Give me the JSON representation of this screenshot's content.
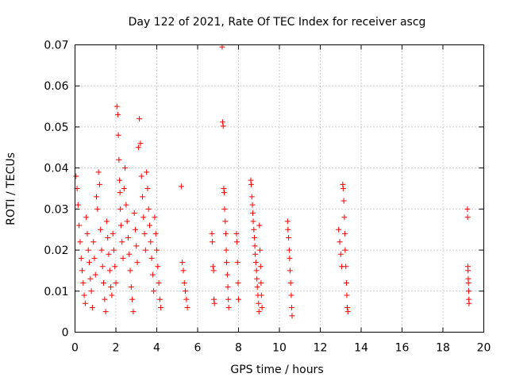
{
  "chart_data": {
    "type": "scatter",
    "title": "Day 122 of 2021, Rate Of TEC Index for receiver ascg",
    "xlabel": "GPS time / hours",
    "ylabel": "ROTI / TECUs",
    "xlim": [
      0,
      20
    ],
    "ylim": [
      0,
      0.07
    ],
    "xticks": [
      0,
      2,
      4,
      6,
      8,
      10,
      12,
      14,
      16,
      18,
      20
    ],
    "yticks": [
      0,
      0.01,
      0.02,
      0.03,
      0.04,
      0.05,
      0.06,
      0.07
    ],
    "xtick_labels": [
      "0",
      "2",
      "4",
      "6",
      "8",
      "10",
      "12",
      "14",
      "16",
      "18",
      "20"
    ],
    "ytick_labels": [
      "0",
      "0.01",
      "0.02",
      "0.03",
      "0.04",
      "0.05",
      "0.06",
      "0.07"
    ],
    "grid": true,
    "marker": "+",
    "color": "#ff0000",
    "series": [
      {
        "name": "ROTI",
        "points": [
          [
            0.05,
            0.038
          ],
          [
            0.1,
            0.035
          ],
          [
            0.15,
            0.031
          ],
          [
            0.2,
            0.026
          ],
          [
            0.25,
            0.022
          ],
          [
            0.3,
            0.018
          ],
          [
            0.35,
            0.015
          ],
          [
            0.4,
            0.012
          ],
          [
            0.45,
            0.009
          ],
          [
            0.5,
            0.007
          ],
          [
            0.55,
            0.028
          ],
          [
            0.6,
            0.024
          ],
          [
            0.65,
            0.02
          ],
          [
            0.7,
            0.017
          ],
          [
            0.75,
            0.013
          ],
          [
            0.8,
            0.01
          ],
          [
            0.85,
            0.006
          ],
          [
            0.9,
            0.022
          ],
          [
            0.95,
            0.018
          ],
          [
            1.0,
            0.014
          ],
          [
            1.05,
            0.033
          ],
          [
            1.1,
            0.03
          ],
          [
            1.15,
            0.039
          ],
          [
            1.2,
            0.036
          ],
          [
            1.25,
            0.025
          ],
          [
            1.3,
            0.02
          ],
          [
            1.35,
            0.016
          ],
          [
            1.4,
            0.012
          ],
          [
            1.45,
            0.008
          ],
          [
            1.5,
            0.005
          ],
          [
            1.55,
            0.027
          ],
          [
            1.6,
            0.023
          ],
          [
            1.65,
            0.019
          ],
          [
            1.7,
            0.015
          ],
          [
            1.75,
            0.011
          ],
          [
            1.8,
            0.009
          ],
          [
            1.85,
            0.024
          ],
          [
            1.9,
            0.02
          ],
          [
            1.95,
            0.016
          ],
          [
            2.0,
            0.012
          ],
          [
            2.05,
            0.055
          ],
          [
            2.1,
            0.053
          ],
          [
            2.12,
            0.048
          ],
          [
            2.15,
            0.042
          ],
          [
            2.18,
            0.037
          ],
          [
            2.2,
            0.034
          ],
          [
            2.22,
            0.03
          ],
          [
            2.25,
            0.026
          ],
          [
            2.3,
            0.022
          ],
          [
            2.35,
            0.018
          ],
          [
            2.4,
            0.035
          ],
          [
            2.45,
            0.04
          ],
          [
            2.5,
            0.031
          ],
          [
            2.55,
            0.027
          ],
          [
            2.6,
            0.023
          ],
          [
            2.65,
            0.019
          ],
          [
            2.7,
            0.015
          ],
          [
            2.75,
            0.011
          ],
          [
            2.8,
            0.008
          ],
          [
            2.85,
            0.005
          ],
          [
            2.9,
            0.029
          ],
          [
            2.95,
            0.025
          ],
          [
            3.0,
            0.021
          ],
          [
            3.05,
            0.017
          ],
          [
            3.1,
            0.045
          ],
          [
            3.15,
            0.052
          ],
          [
            3.2,
            0.046
          ],
          [
            3.25,
            0.038
          ],
          [
            3.3,
            0.033
          ],
          [
            3.35,
            0.028
          ],
          [
            3.4,
            0.024
          ],
          [
            3.45,
            0.02
          ],
          [
            3.5,
            0.039
          ],
          [
            3.55,
            0.035
          ],
          [
            3.6,
            0.03
          ],
          [
            3.65,
            0.026
          ],
          [
            3.7,
            0.022
          ],
          [
            3.75,
            0.018
          ],
          [
            3.8,
            0.014
          ],
          [
            3.85,
            0.01
          ],
          [
            3.9,
            0.028
          ],
          [
            3.95,
            0.024
          ],
          [
            4.0,
            0.02
          ],
          [
            4.05,
            0.016
          ],
          [
            4.1,
            0.012
          ],
          [
            4.15,
            0.008
          ],
          [
            4.2,
            0.006
          ],
          [
            5.2,
            0.0355
          ],
          [
            5.25,
            0.017
          ],
          [
            5.3,
            0.015
          ],
          [
            5.35,
            0.012
          ],
          [
            5.4,
            0.01
          ],
          [
            5.45,
            0.008
          ],
          [
            5.5,
            0.006
          ],
          [
            6.7,
            0.024
          ],
          [
            6.72,
            0.022
          ],
          [
            6.75,
            0.016
          ],
          [
            6.78,
            0.015
          ],
          [
            6.8,
            0.008
          ],
          [
            6.82,
            0.007
          ],
          [
            7.2,
            0.0695
          ],
          [
            7.22,
            0.0512
          ],
          [
            7.25,
            0.0502
          ],
          [
            7.28,
            0.035
          ],
          [
            7.3,
            0.034
          ],
          [
            7.32,
            0.03
          ],
          [
            7.35,
            0.027
          ],
          [
            7.38,
            0.024
          ],
          [
            7.4,
            0.02
          ],
          [
            7.42,
            0.017
          ],
          [
            7.45,
            0.014
          ],
          [
            7.48,
            0.011
          ],
          [
            7.5,
            0.008
          ],
          [
            7.52,
            0.006
          ],
          [
            7.9,
            0.024
          ],
          [
            7.92,
            0.022
          ],
          [
            7.95,
            0.017
          ],
          [
            7.98,
            0.012
          ],
          [
            8.0,
            0.008
          ],
          [
            8.6,
            0.037
          ],
          [
            8.62,
            0.036
          ],
          [
            8.65,
            0.033
          ],
          [
            8.68,
            0.031
          ],
          [
            8.7,
            0.029
          ],
          [
            8.72,
            0.027
          ],
          [
            8.75,
            0.025
          ],
          [
            8.78,
            0.023
          ],
          [
            8.8,
            0.021
          ],
          [
            8.82,
            0.019
          ],
          [
            8.85,
            0.017
          ],
          [
            8.88,
            0.015
          ],
          [
            8.9,
            0.013
          ],
          [
            8.92,
            0.011
          ],
          [
            8.95,
            0.009
          ],
          [
            8.98,
            0.007
          ],
          [
            9.0,
            0.005
          ],
          [
            9.02,
            0.026
          ],
          [
            9.05,
            0.02
          ],
          [
            9.08,
            0.016
          ],
          [
            9.1,
            0.012
          ],
          [
            9.12,
            0.009
          ],
          [
            9.15,
            0.006
          ],
          [
            10.4,
            0.027
          ],
          [
            10.42,
            0.025
          ],
          [
            10.45,
            0.023
          ],
          [
            10.48,
            0.02
          ],
          [
            10.5,
            0.018
          ],
          [
            10.52,
            0.015
          ],
          [
            10.55,
            0.012
          ],
          [
            10.58,
            0.009
          ],
          [
            10.6,
            0.006
          ],
          [
            10.62,
            0.004
          ],
          [
            12.9,
            0.025
          ],
          [
            12.95,
            0.022
          ],
          [
            13.0,
            0.019
          ],
          [
            13.05,
            0.016
          ],
          [
            13.1,
            0.036
          ],
          [
            13.12,
            0.035
          ],
          [
            13.15,
            0.032
          ],
          [
            13.18,
            0.028
          ],
          [
            13.2,
            0.024
          ],
          [
            13.22,
            0.02
          ],
          [
            13.25,
            0.016
          ],
          [
            13.28,
            0.012
          ],
          [
            13.3,
            0.009
          ],
          [
            13.32,
            0.006
          ],
          [
            13.35,
            0.005
          ],
          [
            19.2,
            0.03
          ],
          [
            19.21,
            0.028
          ],
          [
            19.22,
            0.016
          ],
          [
            19.23,
            0.015
          ],
          [
            19.24,
            0.013
          ],
          [
            19.25,
            0.012
          ],
          [
            19.26,
            0.01
          ],
          [
            19.27,
            0.008
          ],
          [
            19.28,
            0.007
          ]
        ]
      }
    ]
  }
}
